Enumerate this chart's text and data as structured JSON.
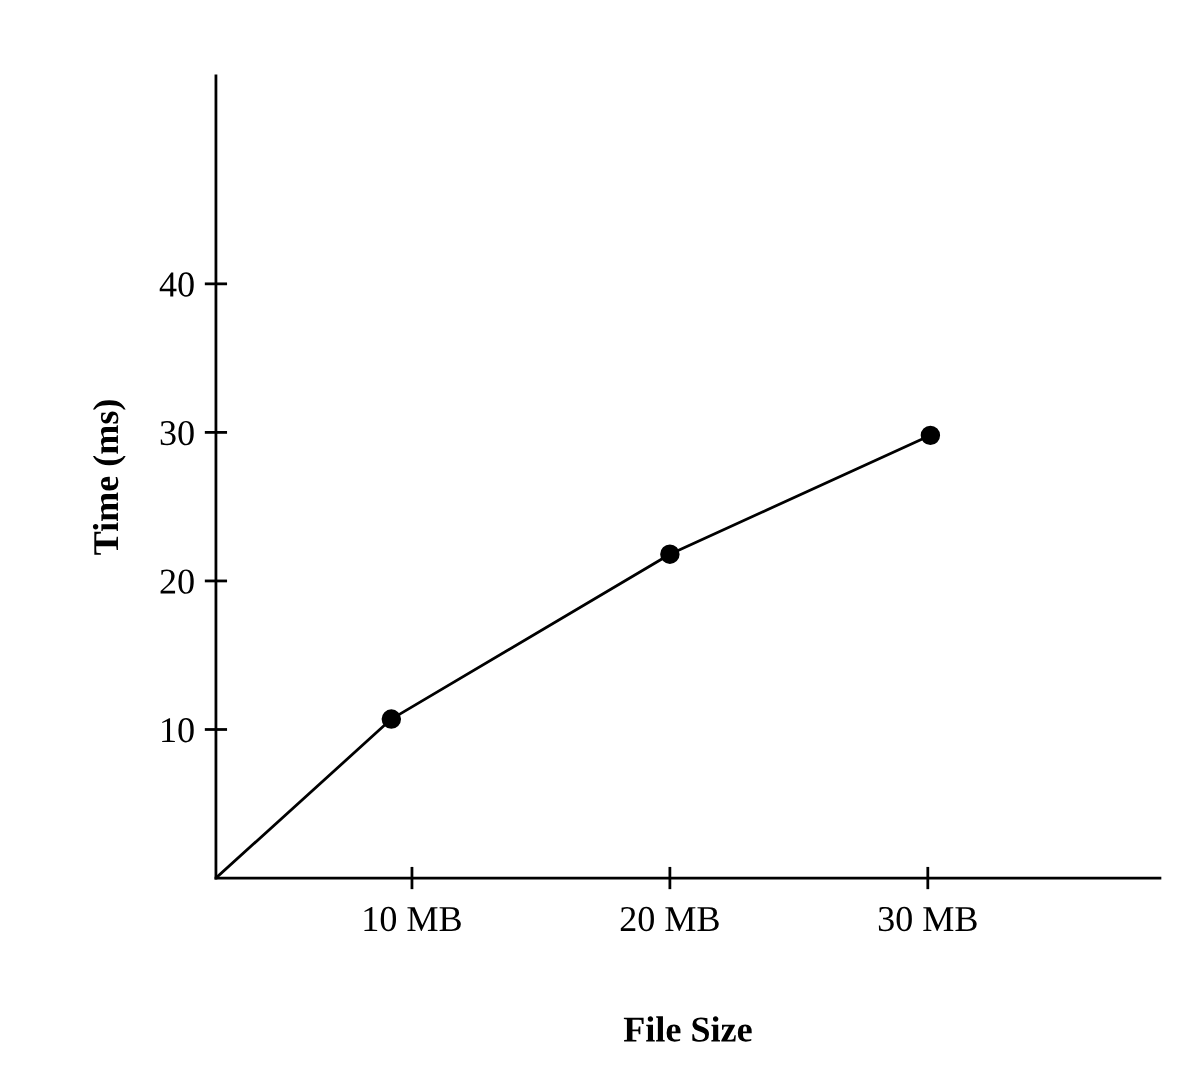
{
  "chart_data": {
    "type": "line",
    "xlabel": "File Size",
    "ylabel": "Time (ms)",
    "x": [
      2.4,
      9.2,
      20,
      30.1
    ],
    "values": [
      0,
      10.7,
      21.8,
      29.8
    ],
    "color": "#000000",
    "marker": "circle",
    "line_style": "solid",
    "xlim": [
      2.4,
      39
    ],
    "ylim": [
      0,
      54
    ],
    "xticks": [
      {
        "value": 10,
        "label": "10 MB"
      },
      {
        "value": 20,
        "label": "20 MB"
      },
      {
        "value": 30,
        "label": "30 MB"
      }
    ],
    "yticks": [
      10,
      20,
      30,
      40
    ],
    "grid": false,
    "legend": false
  }
}
